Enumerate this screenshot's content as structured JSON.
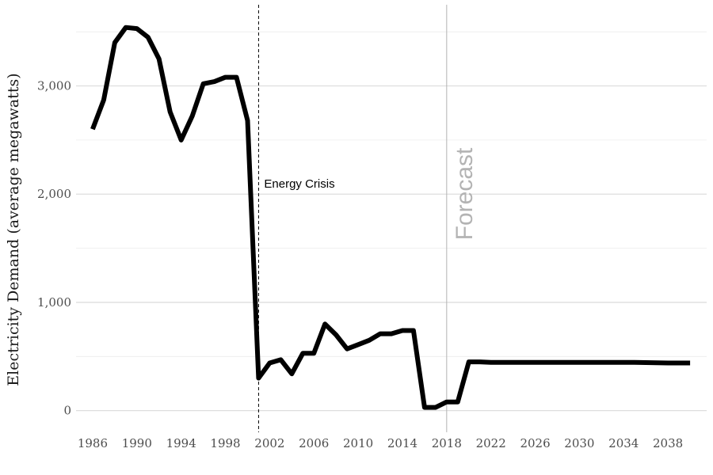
{
  "chart_data": {
    "type": "line",
    "title": "",
    "xlabel": "",
    "ylabel": "Electricity Demand (average megawatts)",
    "xlim": [
      1984.5,
      2041.5
    ],
    "ylim": [
      -200,
      3750
    ],
    "x_ticks": [
      1986,
      1990,
      1994,
      1998,
      2002,
      2006,
      2010,
      2014,
      2018,
      2022,
      2026,
      2030,
      2034,
      2038
    ],
    "y_ticks": [
      0,
      1000,
      2000,
      3000
    ],
    "y_tick_labels": [
      "0",
      "1,000",
      "2,000",
      "3,000"
    ],
    "grid": true,
    "series": [
      {
        "name": "",
        "color": "#000000",
        "x": [
          1986,
          1987,
          1988,
          1989,
          1990,
          1991,
          1992,
          1993,
          1994,
          1995,
          1996,
          1997,
          1998,
          1999,
          2000,
          2001,
          2002,
          2003,
          2004,
          2005,
          2006,
          2007,
          2008,
          2009,
          2010,
          2011,
          2012,
          2013,
          2014,
          2015,
          2016,
          2017,
          2018,
          2019,
          2020,
          2021,
          2022,
          2025,
          2030,
          2035,
          2038,
          2040
        ],
        "y": [
          2600,
          2870,
          3400,
          3540,
          3530,
          3450,
          3250,
          2760,
          2500,
          2720,
          3020,
          3040,
          3080,
          3080,
          2680,
          300,
          440,
          470,
          340,
          530,
          530,
          800,
          700,
          570,
          610,
          650,
          710,
          710,
          740,
          740,
          30,
          30,
          80,
          80,
          450,
          450,
          445,
          445,
          445,
          445,
          440,
          440
        ]
      }
    ],
    "annotations": [
      {
        "x": 2001,
        "label": "Energy Crisis",
        "line_style": "dashed"
      },
      {
        "x": 2018,
        "label": "Forecast",
        "line_style": "solid"
      }
    ]
  }
}
